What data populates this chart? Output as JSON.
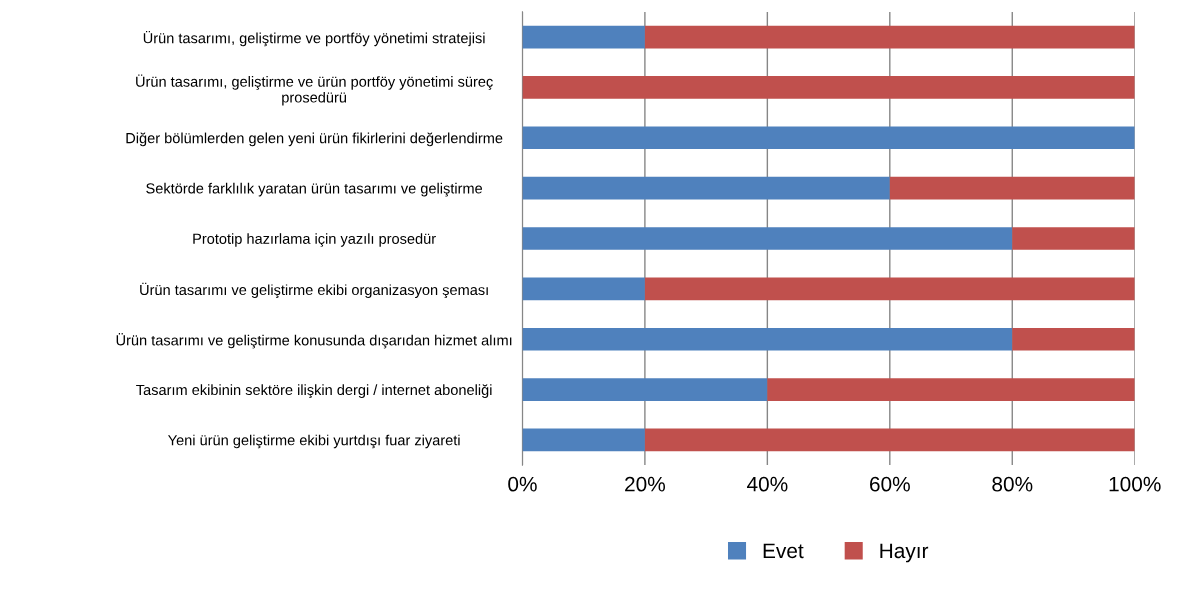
{
  "chart_data": {
    "type": "bar",
    "orientation": "horizontal",
    "stacked": true,
    "categories": [
      "Ürün tasarımı, geliştirme ve portföy yönetimi stratejisi",
      "Ürün tasarımı, geliştirme ve ürün portföy yönetimi süreç\nprosedürü",
      "Diğer bölümlerden gelen yeni ürün fikirlerini değerlendirme",
      "Sektörde farklılık yaratan ürün tasarımı ve geliştirme",
      "Prototip hazırlama için yazılı prosedür",
      "Ürün tasarımı ve geliştirme ekibi organizasyon şeması",
      "Ürün tasarımı ve geliştirme konusunda dışarıdan hizmet alımı",
      "Tasarım ekibinin sektöre ilişkin dergi / internet aboneliği",
      "Yeni ürün geliştirme ekibi yurtdışı fuar ziyareti"
    ],
    "series": [
      {
        "name": "Evet",
        "color": "#4f81bd",
        "values": [
          20,
          0,
          100,
          60,
          80,
          20,
          80,
          40,
          20
        ]
      },
      {
        "name": "Hayır",
        "color": "#c0504d",
        "values": [
          80,
          100,
          0,
          40,
          20,
          80,
          20,
          60,
          80
        ]
      }
    ],
    "xlim": [
      0,
      100
    ],
    "xticks": [
      {
        "value": 0,
        "label": "0%"
      },
      {
        "value": 20,
        "label": "20%"
      },
      {
        "value": 40,
        "label": "40%"
      },
      {
        "value": 60,
        "label": "60%"
      },
      {
        "value": 80,
        "label": "80%"
      },
      {
        "value": 100,
        "label": "100%"
      }
    ],
    "grid": "x",
    "legend": "bottom"
  }
}
